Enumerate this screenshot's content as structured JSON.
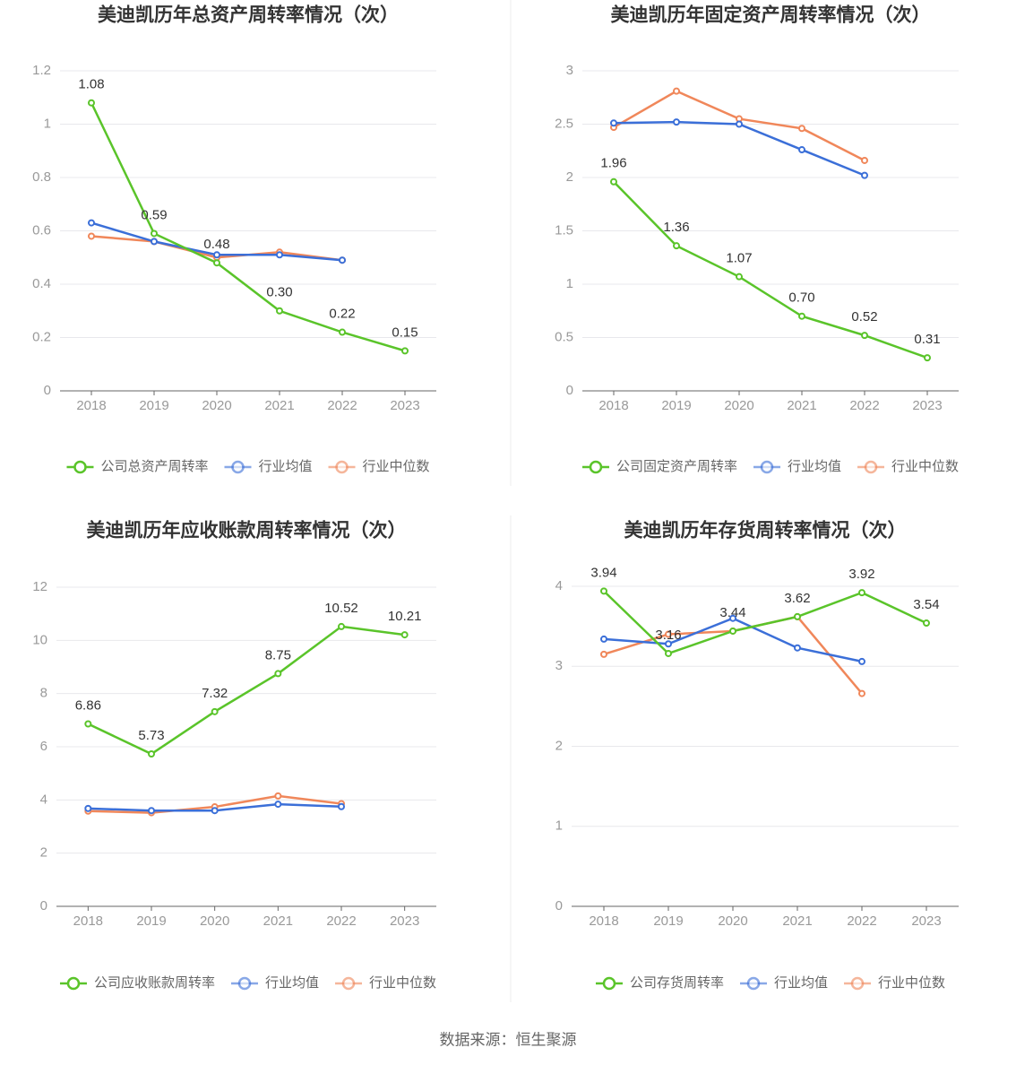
{
  "chart_data": [
    {
      "type": "line",
      "title": "美迪凯历年总资产周转率情况（次）",
      "categories": [
        "2018",
        "2019",
        "2020",
        "2021",
        "2022",
        "2023"
      ],
      "series": [
        {
          "name": "公司总资产周转率",
          "color": "#5ac42a",
          "values": [
            1.08,
            0.59,
            0.48,
            0.3,
            0.22,
            0.15
          ],
          "value_labels": [
            "1.08",
            "0.59",
            "0.48",
            "0.30",
            "0.22",
            "0.15"
          ]
        },
        {
          "name": "行业均值",
          "color": "#3b6fd8",
          "values": [
            0.63,
            0.56,
            0.51,
            0.51,
            0.49,
            null
          ]
        },
        {
          "name": "行业中位数",
          "color": "#f0875a",
          "values": [
            0.58,
            0.56,
            0.5,
            0.52,
            0.49,
            null
          ]
        }
      ],
      "ylim": [
        0,
        1.2
      ],
      "yticks": [
        0,
        0.2,
        0.4,
        0.6,
        0.8,
        1,
        1.2
      ],
      "grid": true
    },
    {
      "type": "line",
      "title": "美迪凯历年固定资产周转率情况（次）",
      "categories": [
        "2018",
        "2019",
        "2020",
        "2021",
        "2022",
        "2023"
      ],
      "series": [
        {
          "name": "公司固定资产周转率",
          "color": "#5ac42a",
          "values": [
            1.96,
            1.36,
            1.07,
            0.7,
            0.52,
            0.31
          ],
          "value_labels": [
            "1.96",
            "1.36",
            "1.07",
            "0.70",
            "0.52",
            "0.31"
          ]
        },
        {
          "name": "行业均值",
          "color": "#3b6fd8",
          "values": [
            2.51,
            2.52,
            2.5,
            2.26,
            2.02,
            null
          ]
        },
        {
          "name": "行业中位数",
          "color": "#f0875a",
          "values": [
            2.47,
            2.81,
            2.55,
            2.46,
            2.16,
            null
          ]
        }
      ],
      "ylim": [
        0,
        3
      ],
      "yticks": [
        0,
        0.5,
        1,
        1.5,
        2,
        2.5,
        3
      ],
      "grid": true
    },
    {
      "type": "line",
      "title": "美迪凯历年应收账款周转率情况（次）",
      "categories": [
        "2018",
        "2019",
        "2020",
        "2021",
        "2022",
        "2023"
      ],
      "series": [
        {
          "name": "公司应收账款周转率",
          "color": "#5ac42a",
          "values": [
            6.86,
            5.73,
            7.32,
            8.75,
            10.52,
            10.21
          ]
        },
        {
          "name": "行业均值",
          "color": "#3b6fd8",
          "values": [
            3.68,
            3.6,
            3.6,
            3.84,
            3.75,
            null
          ]
        },
        {
          "name": "行业中位数",
          "color": "#f0875a",
          "values": [
            3.58,
            3.52,
            3.74,
            4.15,
            3.86,
            null
          ]
        }
      ],
      "ylim": [
        0,
        12
      ],
      "yticks": [
        0,
        2,
        4,
        6,
        8,
        10,
        12
      ],
      "grid": true
    },
    {
      "type": "line",
      "title": "美迪凯历年存货周转率情况（次）",
      "categories": [
        "2018",
        "2019",
        "2020",
        "2021",
        "2022",
        "2023"
      ],
      "series": [
        {
          "name": "公司存货周转率",
          "color": "#5ac42a",
          "values": [
            3.94,
            3.16,
            3.44,
            3.62,
            3.92,
            3.54
          ]
        },
        {
          "name": "行业均值",
          "color": "#3b6fd8",
          "values": [
            3.34,
            3.28,
            3.6,
            3.23,
            3.06,
            null
          ]
        },
        {
          "name": "行业中位数",
          "color": "#f0875a",
          "values": [
            3.15,
            3.4,
            3.44,
            3.62,
            2.66,
            null
          ]
        }
      ],
      "ylim": [
        0,
        4
      ],
      "yticks": [
        0,
        1,
        2,
        3,
        4
      ],
      "grid": true
    }
  ],
  "source": "数据来源：恒生聚源"
}
